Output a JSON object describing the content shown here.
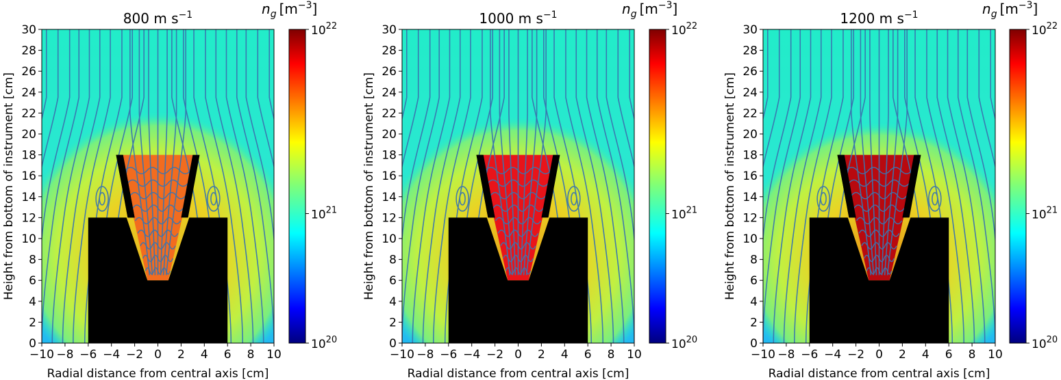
{
  "figure": {
    "colorbar_label_var": "n",
    "colorbar_label_sub": "g",
    "colorbar_label_unit": "[m",
    "colorbar_label_exp": "−3",
    "colorbar_label_close": "]"
  },
  "chart_data": [
    {
      "type": "heatmap",
      "title": "800 m s",
      "title_exp": "−1",
      "xlabel": "Radial distance from central axis [cm]",
      "ylabel": "Height from bottom of instrument [cm]",
      "xlim": [
        -10,
        10
      ],
      "ylim": [
        0,
        30
      ],
      "x_ticks": [
        -10,
        -8,
        -6,
        -4,
        -2,
        0,
        2,
        4,
        6,
        8,
        10
      ],
      "x_tick_labels": [
        "−10",
        "−8",
        "−6",
        "−4",
        "−2",
        "0",
        "2",
        "4",
        "6",
        "8",
        "10"
      ],
      "y_ticks": [
        0,
        2,
        4,
        6,
        8,
        10,
        12,
        14,
        16,
        18,
        20,
        22,
        24,
        26,
        28,
        30
      ],
      "y_tick_labels": [
        "0",
        "2",
        "4",
        "6",
        "8",
        "10",
        "12",
        "14",
        "16",
        "18",
        "20",
        "22",
        "24",
        "26",
        "28",
        "30"
      ],
      "colorbar": {
        "scale": "log",
        "ticks": [
          {
            "base": "10",
            "exp": "22"
          },
          {
            "base": "10",
            "exp": "21"
          },
          {
            "base": "10",
            "exp": "20"
          }
        ]
      },
      "fields": {
        "far_field_density": "≈6×10^20",
        "plume_top": 22.5,
        "cone_interior_density": "≈4×10^21"
      },
      "velocity": 800,
      "colors": {
        "far": "#22ecc9",
        "band": "#f1b416",
        "cone": "#f26c1f"
      }
    },
    {
      "type": "heatmap",
      "title": "1000 m s",
      "title_exp": "−1",
      "xlabel": "Radial distance from central axis [cm]",
      "ylabel": "Height from bottom of instrument [cm]",
      "xlim": [
        -10,
        10
      ],
      "ylim": [
        0,
        30
      ],
      "x_ticks": [
        -10,
        -8,
        -6,
        -4,
        -2,
        0,
        2,
        4,
        6,
        8,
        10
      ],
      "x_tick_labels": [
        "−10",
        "−8",
        "−6",
        "−4",
        "−2",
        "0",
        "2",
        "4",
        "6",
        "8",
        "10"
      ],
      "y_ticks": [
        0,
        2,
        4,
        6,
        8,
        10,
        12,
        14,
        16,
        18,
        20,
        22,
        24,
        26,
        28,
        30
      ],
      "y_tick_labels": [
        "0",
        "2",
        "4",
        "6",
        "8",
        "10",
        "12",
        "14",
        "16",
        "18",
        "20",
        "22",
        "24",
        "26",
        "28",
        "30"
      ],
      "colorbar": {
        "scale": "log",
        "ticks": [
          {
            "base": "10",
            "exp": "22"
          },
          {
            "base": "10",
            "exp": "21"
          },
          {
            "base": "10",
            "exp": "20"
          }
        ]
      },
      "fields": {
        "far_field_density": "≈6×10^20",
        "plume_top": 22.0,
        "cone_interior_density": "≈7×10^21"
      },
      "velocity": 1000,
      "colors": {
        "far": "#22ecc9",
        "band": "#f1a010",
        "cone": "#e8141a"
      }
    },
    {
      "type": "heatmap",
      "title": "1200 m s",
      "title_exp": "−1",
      "xlabel": "Radial distance from central axis [cm]",
      "ylabel": "Height from bottom of instrument [cm]",
      "xlim": [
        -10,
        10
      ],
      "ylim": [
        0,
        30
      ],
      "x_ticks": [
        -10,
        -8,
        -6,
        -4,
        -2,
        0,
        2,
        4,
        6,
        8,
        10
      ],
      "x_tick_labels": [
        "−10",
        "−8",
        "−6",
        "−4",
        "−2",
        "0",
        "2",
        "4",
        "6",
        "8",
        "10"
      ],
      "y_ticks": [
        0,
        2,
        4,
        6,
        8,
        10,
        12,
        14,
        16,
        18,
        20,
        22,
        24,
        26,
        28,
        30
      ],
      "y_tick_labels": [
        "0",
        "2",
        "4",
        "6",
        "8",
        "10",
        "12",
        "14",
        "16",
        "18",
        "20",
        "22",
        "24",
        "26",
        "28",
        "30"
      ],
      "colorbar": {
        "scale": "log",
        "ticks": [
          {
            "base": "10",
            "exp": "22"
          },
          {
            "base": "10",
            "exp": "21"
          },
          {
            "base": "10",
            "exp": "20"
          }
        ]
      },
      "fields": {
        "far_field_density": "≈6×10^20",
        "plume_top": 21.5,
        "cone_interior_density": "≈9×10^21"
      },
      "velocity": 1200,
      "colors": {
        "far": "#22ecc9",
        "band": "#ef8c0c",
        "cone": "#b8090f"
      }
    }
  ]
}
